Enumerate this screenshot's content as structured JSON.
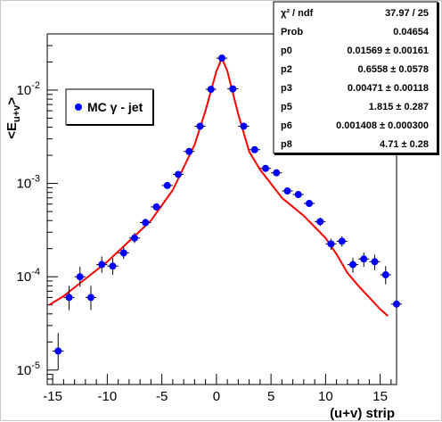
{
  "chart_data": {
    "type": "scatter",
    "y_axis": {
      "title_main": "<E",
      "title_sub": "u+v",
      "title_end": ">",
      "scale": "log",
      "range": [
        7e-06,
        0.04
      ],
      "tick_labels": [
        {
          "value": 1e-05,
          "mantissa": "10",
          "exponent": "-5"
        },
        {
          "value": 0.0001,
          "mantissa": "10",
          "exponent": "-4"
        },
        {
          "value": 0.001,
          "mantissa": "10",
          "exponent": "-3"
        },
        {
          "value": 0.01,
          "mantissa": "10",
          "exponent": "-2"
        }
      ]
    },
    "x_axis": {
      "title": "(u+v) strip",
      "range": [
        -15.5,
        16.5
      ],
      "tick_labels": [
        "-15",
        "-10",
        "-5",
        "0",
        "5",
        "10",
        "15"
      ],
      "tick_values": [
        -15,
        -10,
        -5,
        0,
        5,
        10,
        15
      ]
    },
    "series": [
      {
        "name": "MC γ - jet",
        "color": "#0000ff",
        "points": [
          {
            "x": -14.5,
            "y": 1.6e-05,
            "ylo": 1e-05,
            "yhi": 2.5e-05
          },
          {
            "x": -13.5,
            "y": 6e-05,
            "ylo": 4.4e-05,
            "yhi": 8e-05
          },
          {
            "x": -12.5,
            "y": 0.0001,
            "ylo": 7.8e-05,
            "yhi": 0.000128
          },
          {
            "x": -11.5,
            "y": 6e-05,
            "ylo": 4.4e-05,
            "yhi": 8e-05
          },
          {
            "x": -10.5,
            "y": 0.000135,
            "ylo": 0.00011,
            "yhi": 0.000165
          },
          {
            "x": -9.5,
            "y": 0.00013,
            "ylo": 0.000105,
            "yhi": 0.000158
          },
          {
            "x": -8.5,
            "y": 0.00018,
            "ylo": 0.000155,
            "yhi": 0.00021
          },
          {
            "x": -7.5,
            "y": 0.00026,
            "ylo": 0.00023,
            "yhi": 0.000295
          },
          {
            "x": -6.5,
            "y": 0.00038,
            "ylo": 0.000345,
            "yhi": 0.00042
          },
          {
            "x": -5.5,
            "y": 0.00056,
            "ylo": 0.00051,
            "yhi": 0.00061
          },
          {
            "x": -4.5,
            "y": 0.00095,
            "ylo": 0.00089,
            "yhi": 0.00101
          },
          {
            "x": -3.5,
            "y": 0.00125,
            "ylo": 0.00118,
            "yhi": 0.00132
          },
          {
            "x": -2.5,
            "y": 0.0022,
            "ylo": 0.0021,
            "yhi": 0.0023
          },
          {
            "x": -1.5,
            "y": 0.0041,
            "ylo": 0.00395,
            "yhi": 0.00425
          },
          {
            "x": -0.5,
            "y": 0.0102,
            "ylo": 0.0099,
            "yhi": 0.0105
          },
          {
            "x": 0.5,
            "y": 0.022,
            "ylo": 0.0216,
            "yhi": 0.0224
          },
          {
            "x": 1.5,
            "y": 0.0103,
            "ylo": 0.01,
            "yhi": 0.0106
          },
          {
            "x": 2.5,
            "y": 0.0041,
            "ylo": 0.00395,
            "yhi": 0.00425
          },
          {
            "x": 3.5,
            "y": 0.0023,
            "ylo": 0.0022,
            "yhi": 0.0024
          },
          {
            "x": 4.5,
            "y": 0.00145,
            "ylo": 0.00137,
            "yhi": 0.00153
          },
          {
            "x": 5.5,
            "y": 0.0013,
            "ylo": 0.00122,
            "yhi": 0.00138
          },
          {
            "x": 6.5,
            "y": 0.00083,
            "ylo": 0.00077,
            "yhi": 0.00089
          },
          {
            "x": 7.5,
            "y": 0.00076,
            "ylo": 0.0007,
            "yhi": 0.00082
          },
          {
            "x": 8.5,
            "y": 0.00061,
            "ylo": 0.00056,
            "yhi": 0.00066
          },
          {
            "x": 9.5,
            "y": 0.00039,
            "ylo": 0.00035,
            "yhi": 0.00043
          },
          {
            "x": 10.5,
            "y": 0.000225,
            "ylo": 0.000195,
            "yhi": 0.000255
          },
          {
            "x": 11.5,
            "y": 0.00024,
            "ylo": 0.00021,
            "yhi": 0.00027
          },
          {
            "x": 12.5,
            "y": 0.000135,
            "ylo": 0.00011,
            "yhi": 0.00016
          },
          {
            "x": 13.5,
            "y": 0.000155,
            "ylo": 0.000128,
            "yhi": 0.000182
          },
          {
            "x": 14.5,
            "y": 0.000145,
            "ylo": 0.000118,
            "yhi": 0.000172
          },
          {
            "x": 15.5,
            "y": 0.000105,
            "ylo": 8.3e-05,
            "yhi": 0.00013
          },
          {
            "x": 16.5,
            "y": 5.1e-05,
            "ylo": 3.7e-05,
            "yhi": 6.8e-05
          }
        ]
      }
    ],
    "fit": {
      "color": "#ff0000",
      "x": [
        -15.3,
        -14,
        -12,
        -10,
        -8,
        -6,
        -4,
        -2,
        -1,
        0,
        0.5,
        1,
        2,
        3,
        4,
        6,
        8,
        10,
        11,
        12,
        13,
        14,
        15,
        15.7
      ],
      "y": [
        5e-05,
        6.2e-05,
        9.5e-05,
        0.000145,
        0.00024,
        0.0004,
        0.00085,
        0.0026,
        0.006,
        0.016,
        0.022,
        0.016,
        0.0055,
        0.0022,
        0.0014,
        0.0007,
        0.00045,
        0.00026,
        0.000175,
        0.00011,
        8e-05,
        6e-05,
        4.5e-05,
        3.8e-05
      ]
    },
    "stats": [
      {
        "label": "χ² / ndf",
        "value": "37.97 / 25"
      },
      {
        "label": "Prob",
        "value": "0.04654"
      },
      {
        "label": "p0",
        "value": "0.01569 ± 0.00161"
      },
      {
        "label": "p2",
        "value": "0.6558 ± 0.0578"
      },
      {
        "label": "p3",
        "value": "0.00471 ± 0.00118"
      },
      {
        "label": "p5",
        "value": "1.815 ± 0.287"
      },
      {
        "label": "p6",
        "value": "0.001408 ± 0.000300"
      },
      {
        "label": "p8",
        "value": "4.71 ± 0.28"
      }
    ],
    "legend": {
      "label": "MC γ - jet",
      "position": "top-left"
    },
    "grid": false
  }
}
